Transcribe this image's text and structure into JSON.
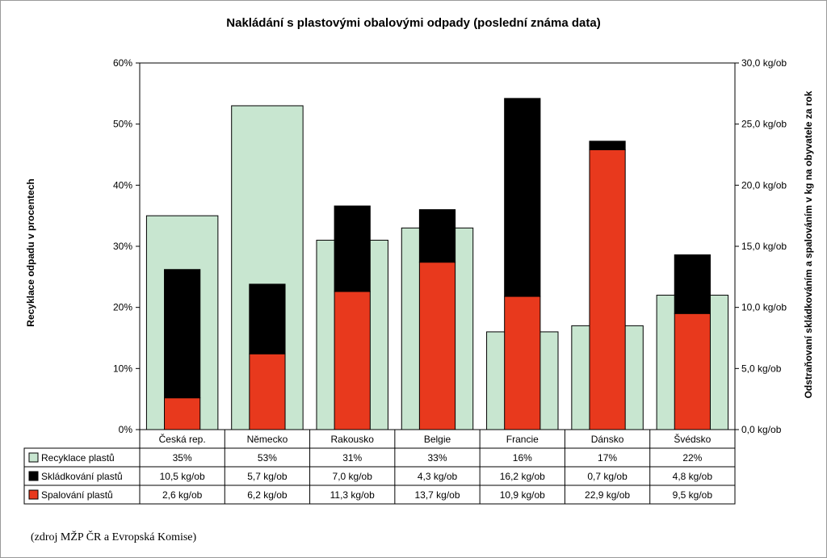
{
  "chart_data": {
    "type": "bar",
    "title": "Nakládání s plastovými obalovými odpady (poslední známa data)",
    "ylabel": "Recyklace odpadu v procentech",
    "y2label": "Odstraňovaní skládkováním a spalováním v kg na obyvatele za rok",
    "ylim": [
      0,
      60
    ],
    "y2lim": [
      0,
      30
    ],
    "y_ticks": [
      "0%",
      "10%",
      "20%",
      "30%",
      "40%",
      "50%",
      "60%"
    ],
    "y2_ticks": [
      "0,0 kg/ob",
      "5,0 kg/ob",
      "10,0 kg/ob",
      "15,0 kg/ob",
      "20,0 kg/ob",
      "25,0 kg/ob",
      "30,0 kg/ob"
    ],
    "categories": [
      "Česká rep.",
      "Německo",
      "Rakousko",
      "Belgie",
      "Francie",
      "Dánsko",
      "Švédsko"
    ],
    "series": [
      {
        "name": "Recyklace plastů",
        "axis": "left",
        "color": "#c8e6d0",
        "values": [
          35,
          53,
          31,
          33,
          16,
          17,
          22
        ],
        "labels": [
          "35%",
          "53%",
          "31%",
          "33%",
          "16%",
          "17%",
          "22%"
        ]
      },
      {
        "name": "Skládkování plastů",
        "axis": "right",
        "stack": "odstranovani",
        "color": "#000000",
        "values": [
          10.5,
          5.7,
          7.0,
          4.3,
          16.2,
          0.7,
          4.8
        ],
        "labels": [
          "10,5 kg/ob",
          "5,7 kg/ob",
          "7,0 kg/ob",
          "4,3 kg/ob",
          "16,2 kg/ob",
          "0,7 kg/ob",
          "4,8 kg/ob"
        ]
      },
      {
        "name": "Spalování plastů",
        "axis": "right",
        "stack": "odstranovani",
        "color": "#e8391d",
        "values": [
          2.6,
          6.2,
          11.3,
          13.7,
          10.9,
          22.9,
          9.5
        ],
        "labels": [
          "2,6 kg/ob",
          "6,2 kg/ob",
          "11,3 kg/ob",
          "13,7 kg/ob",
          "10,9 kg/ob",
          "22,9 kg/ob",
          "9,5 kg/ob"
        ]
      }
    ],
    "legend": "data-table-left",
    "grid": false
  },
  "source_note": "(zdroj MŽP ČR a Evropská Komise)"
}
